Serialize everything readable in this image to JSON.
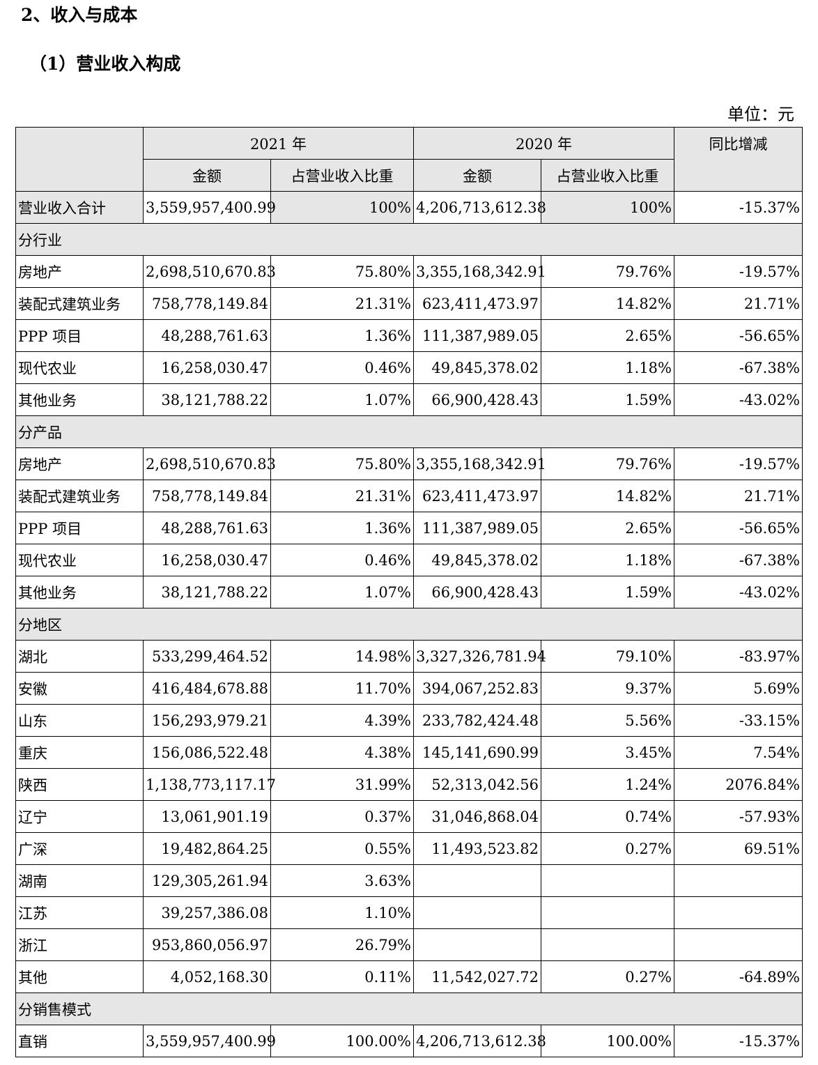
{
  "heading": "2、收入与成本",
  "subheading": "（1）营业收入构成",
  "unit": "单位：元",
  "header": {
    "year_2021": "2021 年",
    "year_2020": "2020 年",
    "yoy": "同比增减",
    "amount": "金额",
    "share": "占营业收入比重"
  },
  "total": {
    "label": "营业收入合计",
    "a2021": "3,559,957,400.99",
    "p2021": "100%",
    "a2020": "4,206,713,612.38",
    "p2020": "100%",
    "yoy": "-15.37%"
  },
  "sections": [
    {
      "title": "分行业",
      "rows": [
        {
          "label": "房地产",
          "a2021": "2,698,510,670.83",
          "p2021": "75.80%",
          "a2020": "3,355,168,342.91",
          "p2020": "79.76%",
          "yoy": "-19.57%"
        },
        {
          "label": "装配式建筑业务",
          "a2021": "758,778,149.84",
          "p2021": "21.31%",
          "a2020": "623,411,473.97",
          "p2020": "14.82%",
          "yoy": "21.71%"
        },
        {
          "label": "PPP 项目",
          "a2021": "48,288,761.63",
          "p2021": "1.36%",
          "a2020": "111,387,989.05",
          "p2020": "2.65%",
          "yoy": "-56.65%"
        },
        {
          "label": "现代农业",
          "a2021": "16,258,030.47",
          "p2021": "0.46%",
          "a2020": "49,845,378.02",
          "p2020": "1.18%",
          "yoy": "-67.38%"
        },
        {
          "label": "其他业务",
          "a2021": "38,121,788.22",
          "p2021": "1.07%",
          "a2020": "66,900,428.43",
          "p2020": "1.59%",
          "yoy": "-43.02%"
        }
      ]
    },
    {
      "title": "分产品",
      "rows": [
        {
          "label": "房地产",
          "a2021": "2,698,510,670.83",
          "p2021": "75.80%",
          "a2020": "3,355,168,342.91",
          "p2020": "79.76%",
          "yoy": "-19.57%"
        },
        {
          "label": "装配式建筑业务",
          "a2021": "758,778,149.84",
          "p2021": "21.31%",
          "a2020": "623,411,473.97",
          "p2020": "14.82%",
          "yoy": "21.71%"
        },
        {
          "label": "PPP 项目",
          "a2021": "48,288,761.63",
          "p2021": "1.36%",
          "a2020": "111,387,989.05",
          "p2020": "2.65%",
          "yoy": "-56.65%"
        },
        {
          "label": "现代农业",
          "a2021": "16,258,030.47",
          "p2021": "0.46%",
          "a2020": "49,845,378.02",
          "p2020": "1.18%",
          "yoy": "-67.38%"
        },
        {
          "label": "其他业务",
          "a2021": "38,121,788.22",
          "p2021": "1.07%",
          "a2020": "66,900,428.43",
          "p2020": "1.59%",
          "yoy": "-43.02%"
        }
      ]
    },
    {
      "title": "分地区",
      "rows": [
        {
          "label": "湖北",
          "a2021": "533,299,464.52",
          "p2021": "14.98%",
          "a2020": "3,327,326,781.94",
          "p2020": "79.10%",
          "yoy": "-83.97%"
        },
        {
          "label": "安徽",
          "a2021": "416,484,678.88",
          "p2021": "11.70%",
          "a2020": "394,067,252.83",
          "p2020": "9.37%",
          "yoy": "5.69%"
        },
        {
          "label": "山东",
          "a2021": "156,293,979.21",
          "p2021": "4.39%",
          "a2020": "233,782,424.48",
          "p2020": "5.56%",
          "yoy": "-33.15%"
        },
        {
          "label": "重庆",
          "a2021": "156,086,522.48",
          "p2021": "4.38%",
          "a2020": "145,141,690.99",
          "p2020": "3.45%",
          "yoy": "7.54%"
        },
        {
          "label": "陕西",
          "a2021": "1,138,773,117.17",
          "p2021": "31.99%",
          "a2020": "52,313,042.56",
          "p2020": "1.24%",
          "yoy": "2076.84%"
        },
        {
          "label": "辽宁",
          "a2021": "13,061,901.19",
          "p2021": "0.37%",
          "a2020": "31,046,868.04",
          "p2020": "0.74%",
          "yoy": "-57.93%"
        },
        {
          "label": "广深",
          "a2021": "19,482,864.25",
          "p2021": "0.55%",
          "a2020": "11,493,523.82",
          "p2020": "0.27%",
          "yoy": "69.51%"
        },
        {
          "label": "湖南",
          "a2021": "129,305,261.94",
          "p2021": "3.63%",
          "a2020": "",
          "p2020": "",
          "yoy": ""
        },
        {
          "label": "江苏",
          "a2021": "39,257,386.08",
          "p2021": "1.10%",
          "a2020": "",
          "p2020": "",
          "yoy": ""
        },
        {
          "label": "浙江",
          "a2021": "953,860,056.97",
          "p2021": "26.79%",
          "a2020": "",
          "p2020": "",
          "yoy": ""
        },
        {
          "label": "其他",
          "a2021": "4,052,168.30",
          "p2021": "0.11%",
          "a2020": "11,542,027.72",
          "p2020": "0.27%",
          "yoy": "-64.89%"
        }
      ]
    },
    {
      "title": "分销售模式",
      "rows": [
        {
          "label": "直销",
          "a2021": "3,559,957,400.99",
          "p2021": "100.00%",
          "a2020": "4,206,713,612.38",
          "p2020": "100.00%",
          "yoy": "-15.37%"
        }
      ]
    }
  ]
}
